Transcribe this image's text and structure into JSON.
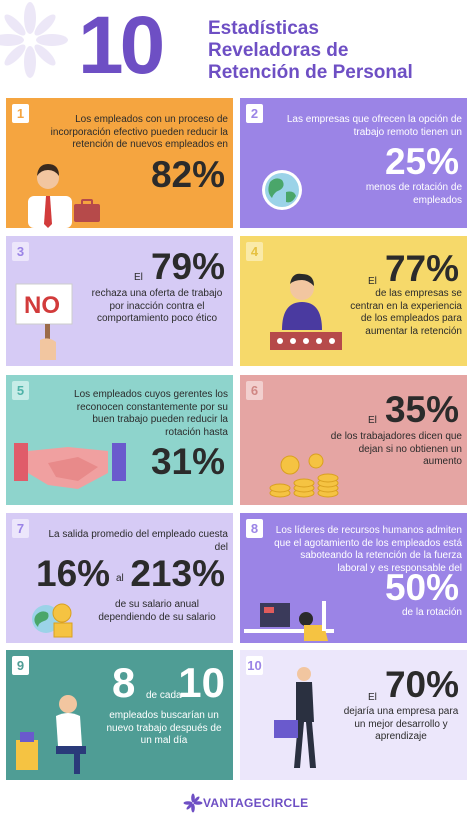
{
  "header": {
    "number": "10",
    "title_lines": [
      "Estadísticas",
      "Reveladoras de",
      "Retención de Personal"
    ]
  },
  "cards": [
    {
      "n": "1",
      "text": "Los empleados con un proceso de incorporación efectivo pueden reducir la retención de nuevos empleados en",
      "pct": "82%"
    },
    {
      "n": "2",
      "text": "Las empresas que ofrecen la opción de trabajo remoto tienen un",
      "pct": "25%",
      "after": "menos de rotación de empleados"
    },
    {
      "n": "3",
      "pre": "El",
      "pct": "79%",
      "text": "rechaza una oferta de trabajo por inacción contra el comportamiento poco ético",
      "sign": "NO"
    },
    {
      "n": "4",
      "pre": "El",
      "pct": "77%",
      "text": "de las empresas se centran en la experiencia de los empleados para aumentar la retención"
    },
    {
      "n": "5",
      "text": "Los empleados cuyos gerentes los reconocen constantemente por su buen trabajo pueden reducir la rotación hasta",
      "pct": "31%"
    },
    {
      "n": "6",
      "pre": "El",
      "pct": "35%",
      "text": "de los trabajadores dicen que dejan si no obtienen un aumento"
    },
    {
      "n": "7",
      "text": "La salida promedio del empleado cuesta del",
      "pct_a": "16%",
      "mid": "al",
      "pct_b": "213%",
      "after": "de su salario anual dependiendo de su salario"
    },
    {
      "n": "8",
      "text": "Los líderes de recursos humanos admiten que el agotamiento de los empleados está saboteando la retención de la fuerza laboral y es responsable del",
      "pct": "50%",
      "after": "de la rotación"
    },
    {
      "n": "9",
      "big_a": "8",
      "mid": "de cada",
      "big_b": "10",
      "text": "empleados buscarían un nuevo trabajo después de un mal día"
    },
    {
      "n": "10",
      "pre": "El",
      "pct": "70%",
      "text": "dejaría una empresa para un mejor desarrollo y aprendizaje"
    }
  ],
  "footer": {
    "brand": "VANTAGECIRCLE"
  },
  "colors": {
    "brand_purple": "#6e4fc4",
    "orange": "#f5a540",
    "violet": "#9b84e6",
    "lavender": "#d6cbf5",
    "yellow": "#f6d96a",
    "mint": "#8ed4cc",
    "rose": "#e5a5a3",
    "teal": "#4f9d95"
  }
}
